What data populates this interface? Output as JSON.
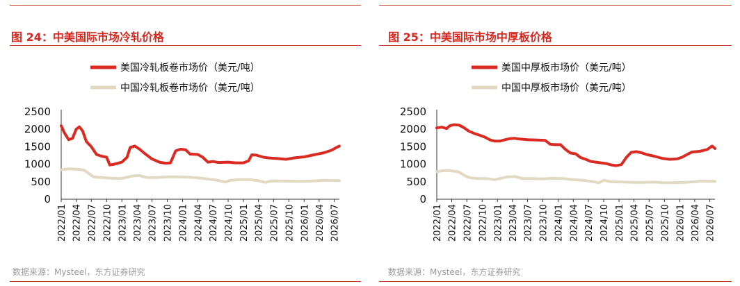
{
  "figures": [
    {
      "title": "图 24：中美国际市场冷轧价格",
      "source": "数据来源：Mysteel，东方证券研究"
    },
    {
      "title": "图 25：中美国际市场中厚板价格",
      "source": "数据来源：Mysteel，东方证券研究"
    }
  ],
  "colors": {
    "us": "#d92b22",
    "cn": "#e2d9c3",
    "rule": "#c0392b",
    "title": "#d6281f"
  },
  "chart_data": [
    {
      "type": "line",
      "title": "图 24：中美国际市场冷轧价格",
      "xlabel": "",
      "ylabel": "",
      "ylim": [
        0,
        2500
      ],
      "yticks": [
        "0",
        "500",
        "1000",
        "1500",
        "2000",
        "2500"
      ],
      "xticks": [
        "2022/01",
        "2022/04",
        "2022/07",
        "2022/10",
        "2023/01",
        "2023/04",
        "2023/07",
        "2023/10",
        "2024/01",
        "2024/04",
        "2024/07",
        "2024/10",
        "2025/01",
        "2025/04",
        "2025/07",
        "2025/10",
        "2026/01",
        "2026/04",
        "2026/07"
      ],
      "grid": false,
      "legend": "top-center",
      "series": [
        {
          "name": "美国冷轧板卷市场价（美元/吨）",
          "color": "#d92b22",
          "points": [
            [
              "2022-01-01",
              2100
            ],
            [
              "2022-01-20",
              1900
            ],
            [
              "2022-02-15",
              1700
            ],
            [
              "2022-03-10",
              1740
            ],
            [
              "2022-04-01",
              2000
            ],
            [
              "2022-04-20",
              2070
            ],
            [
              "2022-05-10",
              1950
            ],
            [
              "2022-06-01",
              1650
            ],
            [
              "2022-07-01",
              1500
            ],
            [
              "2022-08-01",
              1280
            ],
            [
              "2022-09-01",
              1230
            ],
            [
              "2022-10-01",
              1200
            ],
            [
              "2022-10-20",
              980
            ],
            [
              "2022-11-15",
              1000
            ],
            [
              "2023-01-01",
              1060
            ],
            [
              "2023-02-01",
              1200
            ],
            [
              "2023-02-20",
              1480
            ],
            [
              "2023-03-20",
              1520
            ],
            [
              "2023-04-20",
              1420
            ],
            [
              "2023-05-20",
              1300
            ],
            [
              "2023-07-01",
              1150
            ],
            [
              "2023-08-15",
              1060
            ],
            [
              "2023-09-20",
              1030
            ],
            [
              "2023-10-20",
              1040
            ],
            [
              "2023-11-20",
              1380
            ],
            [
              "2023-12-20",
              1430
            ],
            [
              "2024-01-20",
              1410
            ],
            [
              "2024-02-15",
              1290
            ],
            [
              "2024-04-01",
              1280
            ],
            [
              "2024-05-01",
              1200
            ],
            [
              "2024-06-01",
              1060
            ],
            [
              "2024-07-01",
              1080
            ],
            [
              "2024-08-01",
              1050
            ],
            [
              "2024-10-01",
              1060
            ],
            [
              "2024-11-15",
              1040
            ],
            [
              "2025-01-01",
              1040
            ],
            [
              "2025-02-01",
              1100
            ],
            [
              "2025-02-20",
              1270
            ],
            [
              "2025-03-20",
              1260
            ],
            [
              "2025-05-01",
              1200
            ],
            [
              "2025-06-01",
              1180
            ],
            [
              "2025-08-01",
              1160
            ],
            [
              "2025-09-15",
              1140
            ],
            [
              "2025-11-01",
              1180
            ],
            [
              "2026-01-01",
              1210
            ],
            [
              "2026-03-01",
              1270
            ],
            [
              "2026-05-01",
              1330
            ],
            [
              "2026-06-15",
              1400
            ],
            [
              "2026-07-15",
              1480
            ],
            [
              "2026-08-01",
              1520
            ]
          ]
        },
        {
          "name": "中国冷轧板卷市场价（美元/吨）",
          "color": "#e2d9c3",
          "points": [
            [
              "2022-01-01",
              840
            ],
            [
              "2022-02-15",
              870
            ],
            [
              "2022-04-01",
              860
            ],
            [
              "2022-05-15",
              840
            ],
            [
              "2022-06-15",
              740
            ],
            [
              "2022-07-15",
              640
            ],
            [
              "2022-09-01",
              620
            ],
            [
              "2022-11-01",
              600
            ],
            [
              "2022-12-15",
              590
            ],
            [
              "2023-01-15",
              610
            ],
            [
              "2023-03-01",
              660
            ],
            [
              "2023-04-15",
              680
            ],
            [
              "2023-06-01",
              620
            ],
            [
              "2023-08-01",
              620
            ],
            [
              "2023-10-01",
              640
            ],
            [
              "2023-12-01",
              640
            ],
            [
              "2024-02-01",
              630
            ],
            [
              "2024-04-01",
              610
            ],
            [
              "2024-06-01",
              580
            ],
            [
              "2024-08-01",
              540
            ],
            [
              "2024-09-15",
              490
            ],
            [
              "2024-10-15",
              540
            ],
            [
              "2024-12-01",
              560
            ],
            [
              "2025-02-01",
              560
            ],
            [
              "2025-04-01",
              530
            ],
            [
              "2025-05-15",
              480
            ],
            [
              "2025-06-15",
              520
            ],
            [
              "2025-09-01",
              520
            ],
            [
              "2025-12-01",
              510
            ],
            [
              "2026-03-01",
              520
            ],
            [
              "2026-05-01",
              540
            ],
            [
              "2026-08-01",
              530
            ]
          ]
        }
      ]
    },
    {
      "type": "line",
      "title": "图 25：中美国际市场中厚板价格",
      "xlabel": "",
      "ylabel": "",
      "ylim": [
        0,
        2500
      ],
      "yticks": [
        "0",
        "500",
        "1000",
        "1500",
        "2000",
        "2500"
      ],
      "xticks": [
        "2022/01",
        "2022/04",
        "2022/07",
        "2022/10",
        "2023/01",
        "2023/04",
        "2023/07",
        "2023/10",
        "2024/01",
        "2024/04",
        "2024/07",
        "2024/10",
        "2025/01",
        "2025/04",
        "2025/07",
        "2025/10",
        "2026/01",
        "2026/04",
        "2026/07"
      ],
      "grid": false,
      "legend": "top-center",
      "series": [
        {
          "name": "美国中厚板市场价（美元/吨）",
          "color": "#d92b22",
          "points": [
            [
              "2022-01-01",
              2040
            ],
            [
              "2022-02-01",
              2060
            ],
            [
              "2022-03-01",
              2020
            ],
            [
              "2022-03-20",
              2100
            ],
            [
              "2022-04-15",
              2130
            ],
            [
              "2022-05-15",
              2120
            ],
            [
              "2022-06-15",
              2040
            ],
            [
              "2022-07-15",
              1940
            ],
            [
              "2022-08-15",
              1880
            ],
            [
              "2022-09-15",
              1830
            ],
            [
              "2022-10-15",
              1780
            ],
            [
              "2022-11-15",
              1700
            ],
            [
              "2022-12-15",
              1660
            ],
            [
              "2023-01-15",
              1660
            ],
            [
              "2023-02-15",
              1700
            ],
            [
              "2023-03-15",
              1730
            ],
            [
              "2023-04-15",
              1740
            ],
            [
              "2023-05-15",
              1720
            ],
            [
              "2023-07-01",
              1700
            ],
            [
              "2023-09-01",
              1690
            ],
            [
              "2023-10-15",
              1680
            ],
            [
              "2023-11-15",
              1570
            ],
            [
              "2023-12-15",
              1560
            ],
            [
              "2024-01-15",
              1560
            ],
            [
              "2024-02-15",
              1420
            ],
            [
              "2024-03-15",
              1320
            ],
            [
              "2024-04-15",
              1300
            ],
            [
              "2024-05-15",
              1190
            ],
            [
              "2024-06-15",
              1140
            ],
            [
              "2024-07-15",
              1080
            ],
            [
              "2024-08-15",
              1060
            ],
            [
              "2024-09-15",
              1040
            ],
            [
              "2024-10-15",
              1020
            ],
            [
              "2024-11-15",
              980
            ],
            [
              "2024-12-15",
              960
            ],
            [
              "2025-01-15",
              990
            ],
            [
              "2025-02-15",
              1200
            ],
            [
              "2025-03-15",
              1340
            ],
            [
              "2025-04-15",
              1360
            ],
            [
              "2025-05-15",
              1330
            ],
            [
              "2025-06-15",
              1280
            ],
            [
              "2025-08-01",
              1230
            ],
            [
              "2025-09-15",
              1170
            ],
            [
              "2025-11-01",
              1140
            ],
            [
              "2025-12-15",
              1150
            ],
            [
              "2026-01-15",
              1200
            ],
            [
              "2026-02-15",
              1280
            ],
            [
              "2026-03-15",
              1350
            ],
            [
              "2026-05-01",
              1370
            ],
            [
              "2026-06-15",
              1420
            ],
            [
              "2026-07-15",
              1520
            ],
            [
              "2026-08-01",
              1450
            ]
          ]
        },
        {
          "name": "中国中厚板市场价（美元/吨）",
          "color": "#e2d9c3",
          "points": [
            [
              "2022-01-01",
              790
            ],
            [
              "2022-02-15",
              820
            ],
            [
              "2022-04-01",
              810
            ],
            [
              "2022-05-15",
              780
            ],
            [
              "2022-06-15",
              680
            ],
            [
              "2022-07-15",
              620
            ],
            [
              "2022-09-01",
              590
            ],
            [
              "2022-11-01",
              590
            ],
            [
              "2022-12-15",
              560
            ],
            [
              "2023-01-15",
              590
            ],
            [
              "2023-03-01",
              640
            ],
            [
              "2023-04-15",
              650
            ],
            [
              "2023-06-01",
              590
            ],
            [
              "2023-08-01",
              590
            ],
            [
              "2023-10-01",
              580
            ],
            [
              "2023-12-01",
              600
            ],
            [
              "2024-02-01",
              590
            ],
            [
              "2024-04-01",
              560
            ],
            [
              "2024-06-01",
              540
            ],
            [
              "2024-08-01",
              500
            ],
            [
              "2024-09-01",
              470
            ],
            [
              "2024-10-01",
              540
            ],
            [
              "2024-11-15",
              500
            ],
            [
              "2025-02-01",
              490
            ],
            [
              "2025-04-01",
              480
            ],
            [
              "2025-06-01",
              480
            ],
            [
              "2025-08-01",
              490
            ],
            [
              "2025-10-01",
              470
            ],
            [
              "2025-12-01",
              470
            ],
            [
              "2026-02-01",
              480
            ],
            [
              "2026-04-01",
              500
            ],
            [
              "2026-05-15",
              520
            ],
            [
              "2026-08-01",
              510
            ]
          ]
        }
      ]
    }
  ]
}
